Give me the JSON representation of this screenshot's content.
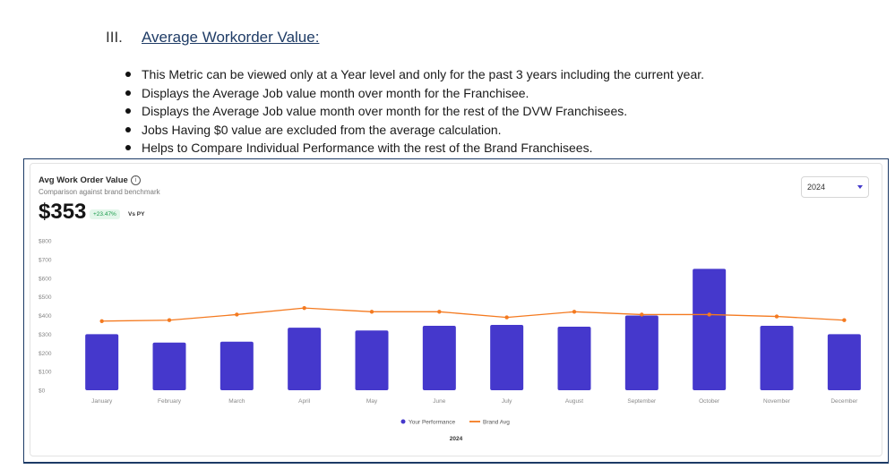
{
  "doc": {
    "section_number": "III.",
    "section_title": "Average Workorder Value:",
    "bullets": [
      "This Metric can be viewed only at a Year level and only for the past 3 years including the current year.",
      "Displays the Average Job value month over month for the Franchisee.",
      "Displays the Average Job value month over month for the rest of the DVW Franchisees.",
      "Jobs Having $0 value are excluded from the average calculation.",
      "Helps to Compare Individual Performance with the rest of the Brand Franchisees."
    ]
  },
  "card": {
    "title": "Avg Work Order Value",
    "info_icon": "i",
    "subtitle": "Comparison against brand benchmark",
    "value": "$353",
    "change": "+23.47%",
    "comparison": "Vs PY",
    "year_select": {
      "selected": "2024"
    },
    "legend": {
      "performance_label": "Your Performance",
      "brand_label": "Brand Avg"
    },
    "x_title": "2024"
  },
  "colors": {
    "bar": "#4538cc",
    "line": "#f47a20",
    "positive": "#1a9c4c"
  },
  "chart_data": {
    "type": "bar",
    "categories": [
      "January",
      "February",
      "March",
      "April",
      "May",
      "June",
      "July",
      "August",
      "September",
      "October",
      "November",
      "December"
    ],
    "series": [
      {
        "name": "Your Performance",
        "type": "bar",
        "values": [
          300,
          255,
          260,
          335,
          320,
          345,
          350,
          340,
          400,
          650,
          345,
          300
        ]
      },
      {
        "name": "Brand Avg",
        "type": "line",
        "values": [
          370,
          375,
          405,
          440,
          420,
          420,
          390,
          420,
          405,
          405,
          395,
          375
        ]
      }
    ],
    "y_ticks": [
      "$0",
      "$100",
      "$200",
      "$300",
      "$400",
      "$500",
      "$600",
      "$700",
      "$800"
    ],
    "ylim": [
      0,
      800
    ],
    "xlabel": "2024",
    "legend_position": "bottom"
  }
}
